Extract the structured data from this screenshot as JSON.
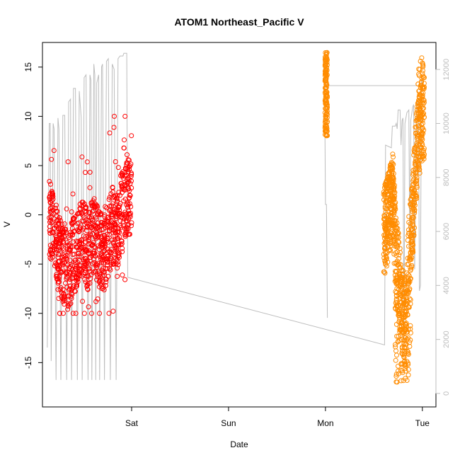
{
  "colors": {
    "series_red": "#ff0000",
    "series_orange": "#ff8c00",
    "secondary_line": "#bdbdbd",
    "axis": "#000000"
  },
  "chart_data": {
    "type": "scatter",
    "title": "ATOM1 Northeast_Pacific V",
    "xlabel": "Date",
    "ylabel": "V",
    "x_ticks": [
      {
        "label": "Sat",
        "day": 1
      },
      {
        "label": "Sun",
        "day": 2
      },
      {
        "label": "Mon",
        "day": 3
      },
      {
        "label": "Tue",
        "day": 4
      }
    ],
    "xlim_days": [
      0.08,
      4.14
    ],
    "ylim": [
      -19.5,
      17.5
    ],
    "y_ticks": [
      -15,
      -10,
      -5,
      0,
      5,
      10,
      15
    ],
    "y2lim": [
      -500,
      13000
    ],
    "y2_ticks": [
      0,
      2000,
      4000,
      6000,
      8000,
      10000,
      12000
    ],
    "grid": false,
    "legend": "none",
    "series": [
      {
        "color": "red",
        "x_range_days": [
          0.15,
          1.0
        ],
        "v_range": [
          -10,
          10
        ],
        "v_profile": [
          [
            0.15,
            0
          ],
          [
            0.2,
            -2
          ],
          [
            0.25,
            -4
          ],
          [
            0.3,
            -5
          ],
          [
            0.35,
            -6
          ],
          [
            0.4,
            -4
          ],
          [
            0.45,
            -3
          ],
          [
            0.5,
            -2
          ],
          [
            0.55,
            -4
          ],
          [
            0.6,
            -2
          ],
          [
            0.65,
            -3
          ],
          [
            0.7,
            -4
          ],
          [
            0.75,
            -3
          ],
          [
            0.8,
            -1
          ],
          [
            0.85,
            -2
          ],
          [
            0.9,
            1
          ],
          [
            0.95,
            2
          ],
          [
            1.0,
            2
          ]
        ]
      },
      {
        "color": "orange",
        "x_range_days": [
          3.0,
          4.0
        ],
        "v_range": [
          -18,
          17
        ],
        "v_profile": [
          [
            3.0,
            13
          ],
          [
            3.01,
            10
          ],
          [
            3.6,
            -2
          ],
          [
            3.65,
            0
          ],
          [
            3.7,
            2
          ],
          [
            3.72,
            -3
          ],
          [
            3.76,
            -7
          ],
          [
            3.8,
            -10
          ],
          [
            3.83,
            -12
          ],
          [
            3.86,
            -4
          ],
          [
            3.9,
            0
          ],
          [
            3.93,
            5
          ],
          [
            3.96,
            8
          ],
          [
            4.0,
            10
          ]
        ]
      },
      {
        "color": "gray",
        "axis": "right",
        "x_y2": [
          [
            0.13,
            1700
          ],
          [
            0.15,
            10000
          ],
          [
            0.16,
            10000
          ],
          [
            0.17,
            1200
          ],
          [
            0.19,
            10000
          ],
          [
            0.2,
            9800
          ],
          [
            0.22,
            500
          ],
          [
            0.24,
            10200
          ],
          [
            0.25,
            9800
          ],
          [
            0.27,
            500
          ],
          [
            0.29,
            10300
          ],
          [
            0.31,
            10300
          ],
          [
            0.33,
            500
          ],
          [
            0.35,
            10800
          ],
          [
            0.37,
            10900
          ],
          [
            0.38,
            500
          ],
          [
            0.4,
            11300
          ],
          [
            0.42,
            11300
          ],
          [
            0.44,
            500
          ],
          [
            0.46,
            11200
          ],
          [
            0.48,
            10200
          ],
          [
            0.49,
            500
          ],
          [
            0.51,
            11700
          ],
          [
            0.53,
            11800
          ],
          [
            0.55,
            500
          ],
          [
            0.57,
            11800
          ],
          [
            0.58,
            11600
          ],
          [
            0.59,
            500
          ],
          [
            0.61,
            12200
          ],
          [
            0.62,
            11800
          ],
          [
            0.63,
            500
          ],
          [
            0.64,
            11500
          ],
          [
            0.66,
            11800
          ],
          [
            0.67,
            500
          ],
          [
            0.69,
            12100
          ],
          [
            0.7,
            12200
          ],
          [
            0.72,
            500
          ],
          [
            0.74,
            12300
          ],
          [
            0.76,
            12400
          ],
          [
            0.78,
            500
          ],
          [
            0.8,
            12200
          ],
          [
            0.82,
            12000
          ],
          [
            0.84,
            500
          ],
          [
            0.86,
            12400
          ],
          [
            0.88,
            12500
          ],
          [
            0.91,
            12500
          ],
          [
            0.92,
            12600
          ],
          [
            0.95,
            12600
          ],
          [
            0.96,
            4300
          ],
          [
            3.61,
            1800
          ],
          [
            3.62,
            9200
          ],
          [
            3.68,
            9100
          ],
          [
            3.69,
            9900
          ],
          [
            3.72,
            9900
          ],
          [
            3.73,
            10000
          ],
          [
            3.74,
            9800
          ],
          [
            3.75,
            10500
          ],
          [
            3.77,
            10500
          ],
          [
            3.78,
            9200
          ],
          [
            3.79,
            10100
          ],
          [
            3.8,
            10200
          ],
          [
            3.81,
            1800
          ],
          [
            3.82,
            10000
          ],
          [
            3.84,
            10400
          ],
          [
            3.86,
            10500
          ],
          [
            3.87,
            5400
          ],
          [
            3.88,
            10100
          ],
          [
            3.9,
            10600
          ],
          [
            3.91,
            10700
          ],
          [
            3.92,
            4600
          ],
          [
            3.94,
            10800
          ],
          [
            3.96,
            10700
          ],
          [
            3.97,
            3800
          ],
          [
            3.98,
            4000
          ],
          [
            3.99,
            11600
          ],
          [
            4.0,
            11600
          ],
          [
            4.01,
            11400
          ],
          [
            3.0,
            11400
          ],
          [
            2.99,
            12200
          ],
          [
            3.0,
            7000
          ],
          [
            3.01,
            7000
          ],
          [
            3.02,
            2800
          ]
        ]
      }
    ]
  }
}
